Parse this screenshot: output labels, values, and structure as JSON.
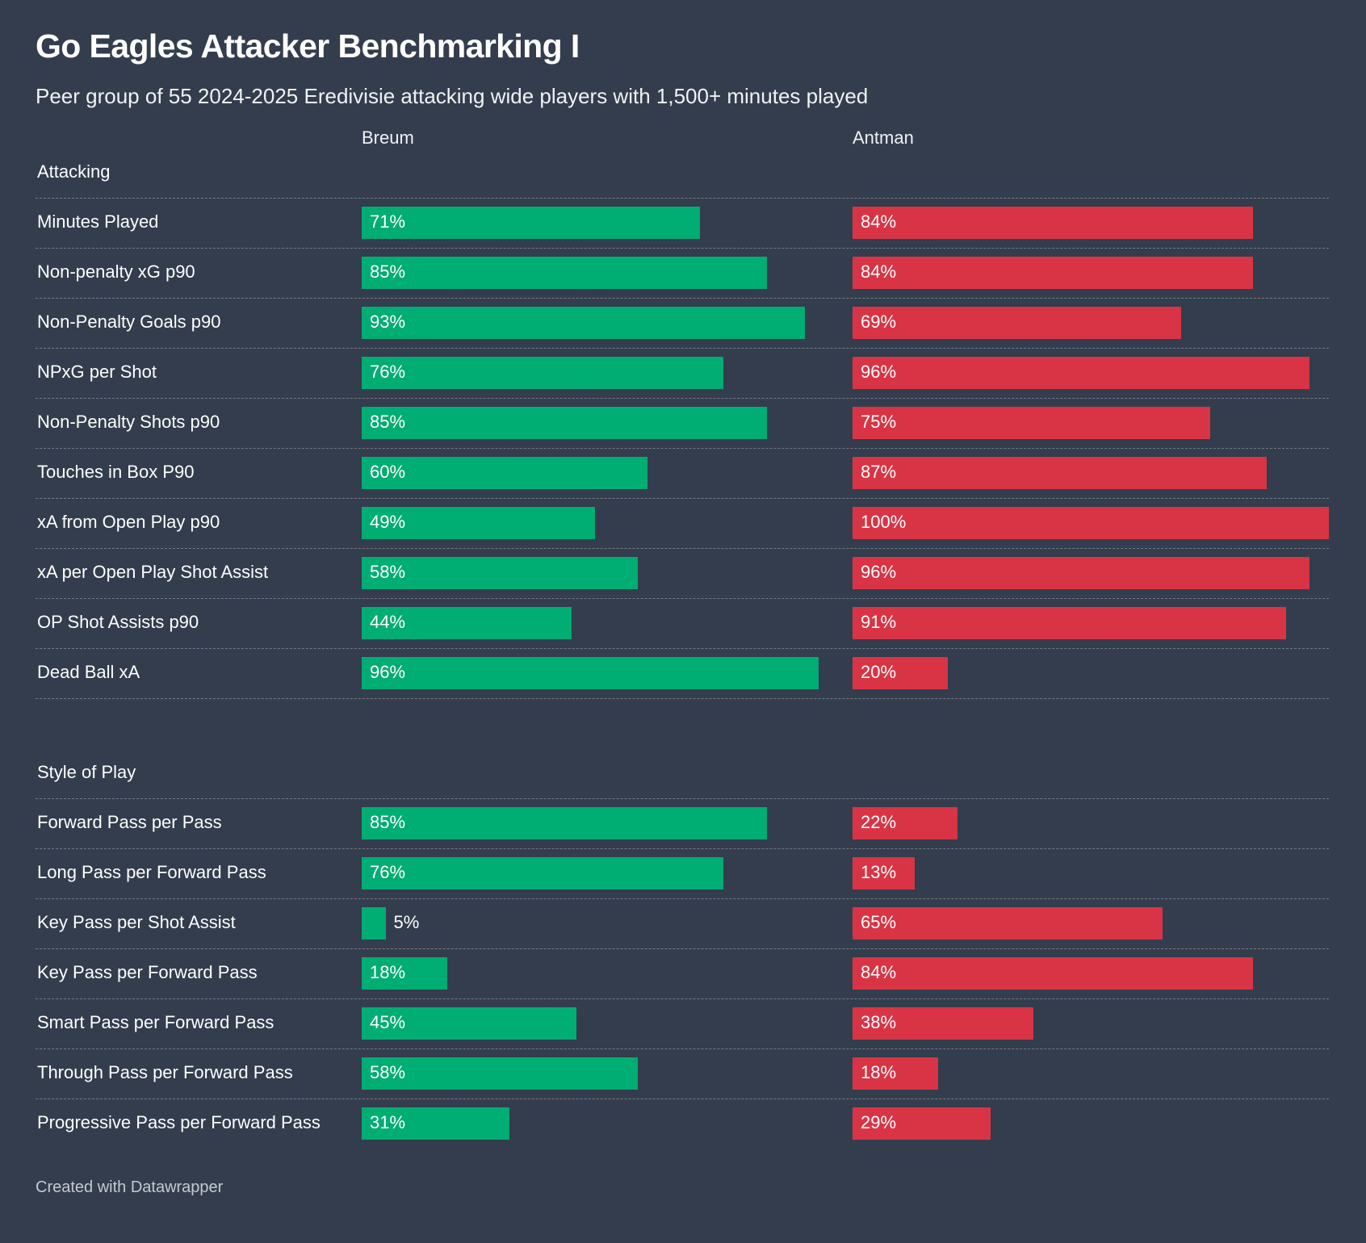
{
  "title": "Go Eagles Attacker Benchmarking I",
  "subtitle": "Peer group of 55 2024-2025 Eredivisie attacking wide players with 1,500+ minutes played",
  "footer": "Created with Datawrapper",
  "colors": {
    "background": "#333d4d",
    "breum": "#00ad72",
    "antman": "#d93445"
  },
  "chart_data": {
    "type": "bar",
    "orientation": "horizontal",
    "value_unit": "%",
    "xlim": [
      0,
      100
    ],
    "columns": [
      "Breum",
      "Antman"
    ],
    "sections": [
      {
        "name": "Attacking",
        "rows": [
          {
            "metric": "Minutes Played",
            "Breum": 71,
            "Antman": 84
          },
          {
            "metric": "Non-penalty xG p90",
            "Breum": 85,
            "Antman": 84
          },
          {
            "metric": "Non-Penalty Goals p90",
            "Breum": 93,
            "Antman": 69
          },
          {
            "metric": "NPxG per Shot",
            "Breum": 76,
            "Antman": 96
          },
          {
            "metric": "Non-Penalty Shots p90",
            "Breum": 85,
            "Antman": 75
          },
          {
            "metric": "Touches in Box P90",
            "Breum": 60,
            "Antman": 87
          },
          {
            "metric": "xA from Open Play p90",
            "Breum": 49,
            "Antman": 100
          },
          {
            "metric": "xA per Open Play Shot Assist",
            "Breum": 58,
            "Antman": 96
          },
          {
            "metric": "OP Shot Assists p90",
            "Breum": 44,
            "Antman": 91
          },
          {
            "metric": "Dead Ball xA",
            "Breum": 96,
            "Antman": 20
          }
        ]
      },
      {
        "name": "Style of Play",
        "rows": [
          {
            "metric": "Forward Pass per Pass",
            "Breum": 85,
            "Antman": 22
          },
          {
            "metric": "Long Pass per Forward Pass",
            "Breum": 76,
            "Antman": 13
          },
          {
            "metric": "Key Pass per Shot Assist",
            "Breum": 5,
            "Antman": 65
          },
          {
            "metric": "Key Pass per Forward Pass",
            "Breum": 18,
            "Antman": 84
          },
          {
            "metric": "Smart Pass per Forward Pass",
            "Breum": 45,
            "Antman": 38
          },
          {
            "metric": "Through Pass per Forward Pass",
            "Breum": 58,
            "Antman": 18
          },
          {
            "metric": "Progressive Pass per Forward Pass",
            "Breum": 31,
            "Antman": 29
          }
        ]
      }
    ]
  }
}
